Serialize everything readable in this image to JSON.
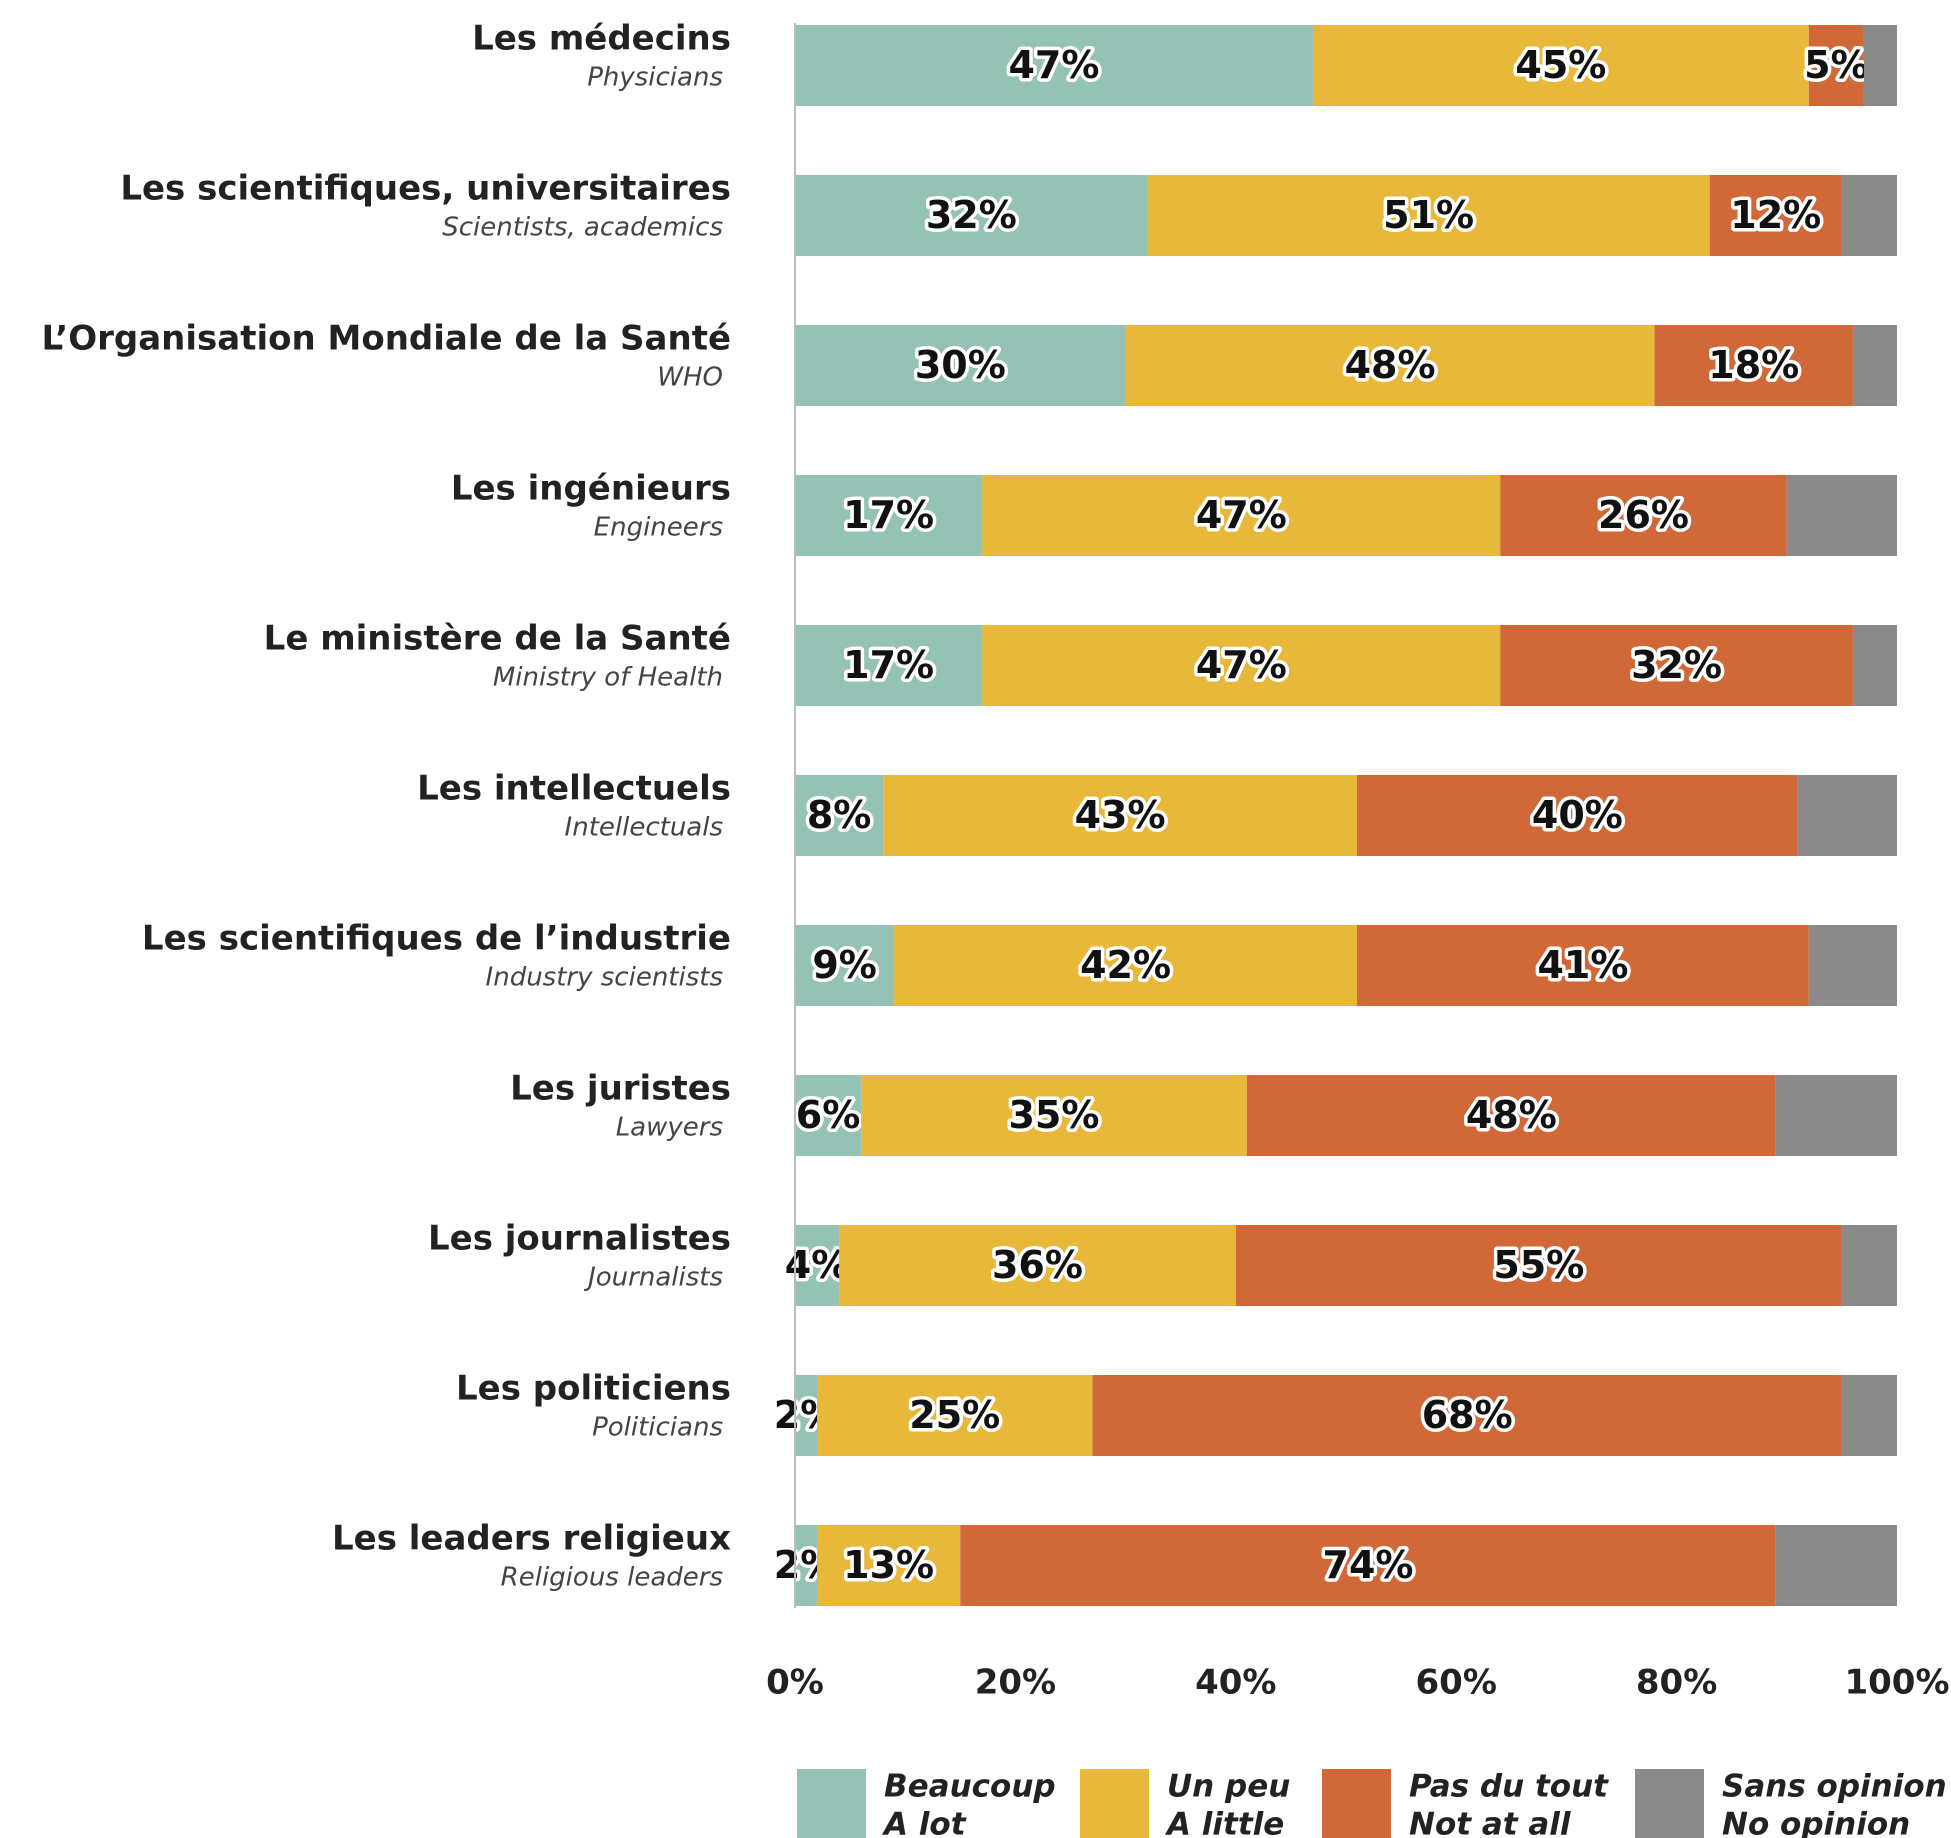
{
  "chart_data": {
    "type": "stacked-barh",
    "categories": [
      "Les médecins",
      "Les scientifiques, universitaires",
      "L’Organisation Mondiale de la Santé",
      "Les ingénieurs",
      "Le ministère de la Santé",
      "Les intellectuels",
      "Les scientifiques de l’industrie",
      "Les juristes",
      "Les journalistes",
      "Les politiciens",
      "Les leaders religieux"
    ],
    "category_translations": [
      "Physicians",
      "Scientists, academics",
      "WHO",
      "Engineers",
      "Ministry of Health",
      "Intellectuals",
      "Industry scientists",
      "Lawyers",
      "Journalists",
      "Politicians",
      "Religious leaders"
    ],
    "series": [
      {
        "name": "Beaucoup",
        "translation": "A lot",
        "color": "#94c2b4",
        "values": [
          47,
          32,
          30,
          17,
          17,
          8,
          9,
          6,
          4,
          2,
          2
        ],
        "value_labels": [
          "47%",
          "32%",
          "30%",
          "17%",
          "17%",
          "8%",
          "9%",
          "6%",
          "4%",
          "2%",
          "2%"
        ]
      },
      {
        "name": "Un peu",
        "translation": "A little",
        "color": "#e8b83b",
        "values": [
          45,
          51,
          48,
          47,
          47,
          43,
          42,
          35,
          36,
          25,
          13
        ],
        "value_labels": [
          "45%",
          "51%",
          "48%",
          "47%",
          "47%",
          "43%",
          "42%",
          "35%",
          "36%",
          "25%",
          "13%"
        ]
      },
      {
        "name": "Pas du tout",
        "translation": "Not at all",
        "color": "#d16838",
        "values": [
          5,
          12,
          18,
          26,
          32,
          40,
          41,
          48,
          55,
          68,
          74
        ],
        "value_labels": [
          "5%",
          "12%",
          "18%",
          "26%",
          "32%",
          "40%",
          "41%",
          "48%",
          "55%",
          "68%",
          "74%"
        ]
      },
      {
        "name": "Sans opinion",
        "translation": "No opinion",
        "color": "#8a8a8a",
        "values": [
          3,
          5,
          4,
          10,
          4,
          9,
          8,
          11,
          5,
          5,
          11
        ]
      }
    ],
    "xlim": [
      0,
      100
    ],
    "xticks": [
      {
        "value": 0,
        "label": "0%"
      },
      {
        "value": 20,
        "label": "20%"
      },
      {
        "value": 40,
        "label": "40%"
      },
      {
        "value": 60,
        "label": "60%"
      },
      {
        "value": 80,
        "label": "80%"
      },
      {
        "value": 100,
        "label": "100%"
      }
    ]
  }
}
